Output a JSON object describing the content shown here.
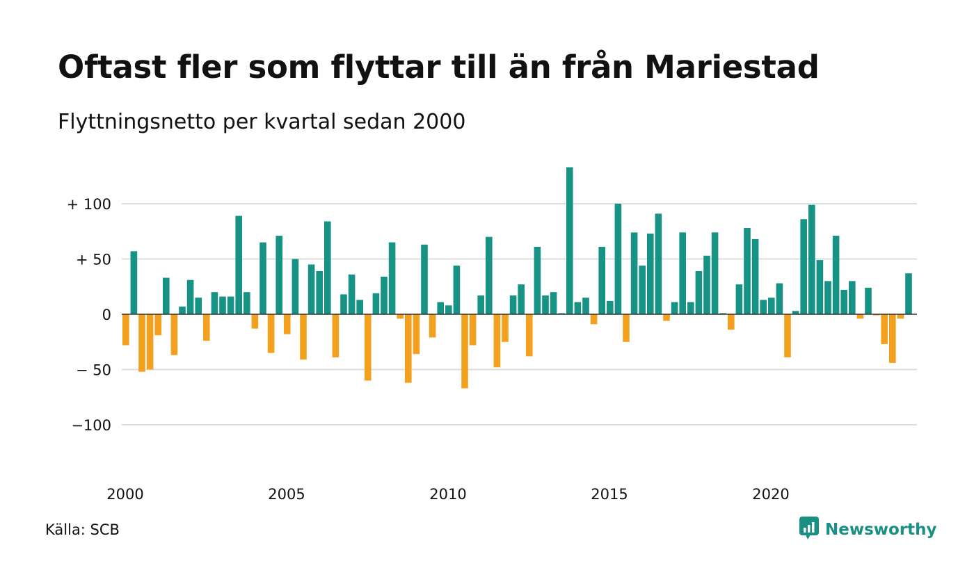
{
  "header": {
    "title": "Oftast fler som flyttar till än från Mariestad",
    "subtitle": "Flyttningsnetto per kvartal sedan 2000"
  },
  "footer": {
    "source": "Källa: SCB",
    "brand": "Newsworthy",
    "brand_icon": "newsworthy-logo-icon"
  },
  "colors": {
    "positive": "#169384",
    "negative": "#f4a01f",
    "brand": "#1a8f83",
    "grid": "#dddddd"
  },
  "chart_data": {
    "type": "bar",
    "grid": true,
    "ylim": [
      -120,
      135
    ],
    "y_ticks": [
      {
        "value": 100,
        "label": "+ 100"
      },
      {
        "value": 50,
        "label": "+  50"
      },
      {
        "value": 0,
        "label": "0"
      },
      {
        "value": -50,
        "label": "− 50"
      },
      {
        "value": -100,
        "label": "−100"
      }
    ],
    "x_ticks": [
      {
        "value": 2000,
        "label": "2000"
      },
      {
        "value": 2005,
        "label": "2005"
      },
      {
        "value": 2010,
        "label": "2010"
      },
      {
        "value": 2015,
        "label": "2015"
      },
      {
        "value": 2020,
        "label": "2020"
      }
    ],
    "x_start": 2000,
    "periods_per_year": 4,
    "values": [
      -28,
      57,
      -52,
      -50,
      -19,
      33,
      -37,
      7,
      31,
      15,
      -24,
      20,
      16,
      16,
      89,
      20,
      -13,
      65,
      -35,
      71,
      -18,
      50,
      -41,
      45,
      39,
      84,
      -39,
      18,
      36,
      13,
      -60,
      19,
      34,
      65,
      -4,
      -62,
      -36,
      63,
      -21,
      11,
      8,
      44,
      -67,
      -28,
      17,
      70,
      -48,
      -25,
      17,
      27,
      -38,
      61,
      17,
      20,
      1,
      133,
      11,
      15,
      -9,
      61,
      12,
      100,
      -25,
      74,
      44,
      73,
      91,
      -6,
      11,
      74,
      11,
      39,
      53,
      74,
      1,
      -14,
      27,
      78,
      68,
      13,
      15,
      28,
      -39,
      3,
      86,
      99,
      49,
      30,
      71,
      22,
      30,
      -4,
      24,
      -1,
      -27,
      -44,
      -4,
      37
    ]
  }
}
